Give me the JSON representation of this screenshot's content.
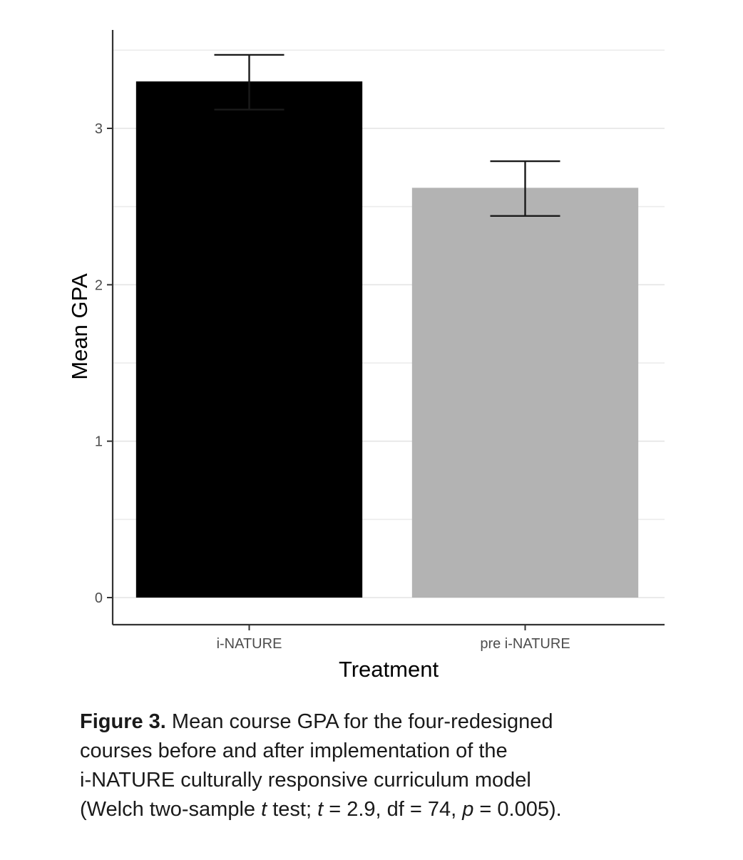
{
  "chart_data": {
    "type": "bar",
    "categories": [
      "i-NATURE",
      "pre i-NATURE"
    ],
    "values": [
      3.3,
      2.62
    ],
    "error_bars": [
      {
        "low": 3.12,
        "high": 3.47
      },
      {
        "low": 2.44,
        "high": 2.79
      }
    ],
    "colors": [
      "#000000",
      "#b3b3b3"
    ],
    "xlabel": "Treatment",
    "ylabel": "Mean GPA",
    "ylim": [
      0,
      3.6
    ],
    "yticks": [
      0,
      1,
      2,
      3
    ],
    "grid": "horizontal major and minor"
  },
  "caption": {
    "label": "Figure 3.",
    "line1_rest": " Mean course GPA for the four-redesigned",
    "line2": "courses before and after implementation of the",
    "line3": "i-NATURE culturally responsive curriculum model",
    "line4_a": "(Welch two-sample ",
    "line4_t": "t",
    "line4_b": " test; ",
    "line4_t2": "t",
    "line4_c": " = 2.9, df = 74, ",
    "line4_p": "p",
    "line4_d": " = 0.005)."
  }
}
